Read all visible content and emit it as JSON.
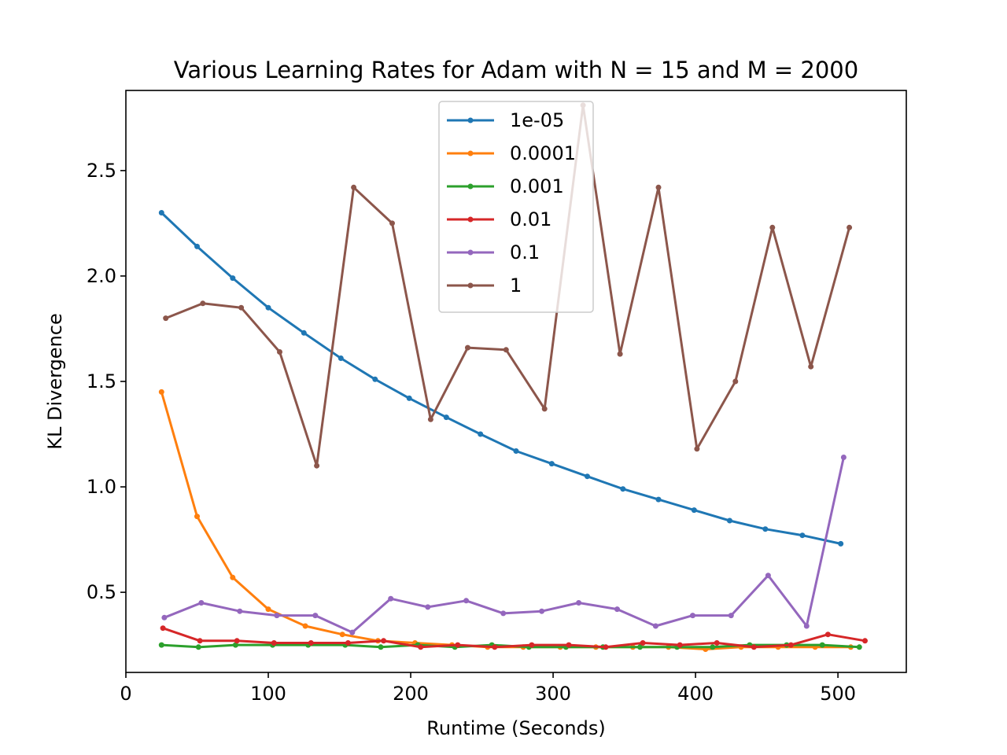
{
  "chart_data": {
    "type": "line",
    "title": "Various Learning Rates for Adam with N = 15 and M = 2000",
    "xlabel": "Runtime (Seconds)",
    "ylabel": "KL Divergence",
    "xlim": [
      0,
      548
    ],
    "ylim": [
      0.12,
      2.88
    ],
    "xticks": [
      0,
      100,
      200,
      300,
      400,
      500
    ],
    "yticks": [
      0.5,
      1.0,
      1.5,
      2.0,
      2.5
    ],
    "xtick_labels": [
      "0",
      "100",
      "200",
      "300",
      "400",
      "500"
    ],
    "ytick_labels": [
      "0.5",
      "1.0",
      "1.5",
      "2.0",
      "2.5"
    ],
    "grid": false,
    "legend_position": "upper center",
    "series": [
      {
        "name": "1e-05",
        "color": "#1f77b4",
        "x": [
          25,
          50,
          75,
          100,
          125,
          151,
          175,
          199,
          225,
          249,
          274,
          299,
          324,
          349,
          374,
          399,
          424,
          449,
          475,
          502
        ],
        "y": [
          2.3,
          2.14,
          1.99,
          1.85,
          1.73,
          1.61,
          1.51,
          1.42,
          1.33,
          1.25,
          1.17,
          1.11,
          1.05,
          0.99,
          0.94,
          0.89,
          0.84,
          0.8,
          0.77,
          0.73
        ]
      },
      {
        "name": "0.0001",
        "color": "#ff7f0e",
        "x": [
          25,
          50,
          75,
          100,
          126,
          152,
          177,
          203,
          229,
          254,
          279,
          305,
          330,
          356,
          381,
          407,
          432,
          458,
          484,
          509
        ],
        "y": [
          1.45,
          0.86,
          0.57,
          0.42,
          0.34,
          0.3,
          0.27,
          0.26,
          0.25,
          0.24,
          0.24,
          0.24,
          0.24,
          0.24,
          0.24,
          0.23,
          0.24,
          0.24,
          0.24,
          0.24
        ]
      },
      {
        "name": "0.001",
        "color": "#2ca02c",
        "x": [
          25,
          51,
          77,
          103,
          128,
          154,
          179,
          205,
          231,
          257,
          283,
          309,
          335,
          361,
          387,
          412,
          438,
          464,
          489,
          515
        ],
        "y": [
          0.25,
          0.24,
          0.25,
          0.25,
          0.25,
          0.25,
          0.24,
          0.25,
          0.24,
          0.25,
          0.24,
          0.24,
          0.24,
          0.24,
          0.24,
          0.24,
          0.25,
          0.25,
          0.25,
          0.24
        ]
      },
      {
        "name": "0.01",
        "color": "#d62728",
        "x": [
          26,
          52,
          78,
          104,
          130,
          156,
          181,
          207,
          233,
          259,
          285,
          311,
          337,
          363,
          389,
          415,
          441,
          467,
          493,
          519
        ],
        "y": [
          0.33,
          0.27,
          0.27,
          0.26,
          0.26,
          0.26,
          0.27,
          0.24,
          0.25,
          0.24,
          0.25,
          0.25,
          0.24,
          0.26,
          0.25,
          0.26,
          0.24,
          0.25,
          0.3,
          0.27
        ]
      },
      {
        "name": "0.1",
        "color": "#9467bd",
        "x": [
          27,
          53,
          80,
          106,
          133,
          159,
          186,
          212,
          239,
          265,
          292,
          318,
          345,
          372,
          398,
          425,
          451,
          478,
          504
        ],
        "y": [
          0.38,
          0.45,
          0.41,
          0.39,
          0.39,
          0.31,
          0.47,
          0.43,
          0.46,
          0.4,
          0.41,
          0.45,
          0.42,
          0.34,
          0.39,
          0.39,
          0.58,
          0.34,
          1.14
        ]
      },
      {
        "name": "1",
        "color": "#8c564b",
        "x": [
          28,
          54,
          81,
          108,
          134,
          160,
          187,
          214,
          240,
          267,
          294,
          321,
          347,
          374,
          401,
          428,
          454,
          481,
          508
        ],
        "y": [
          1.8,
          1.87,
          1.85,
          1.64,
          1.1,
          2.42,
          2.25,
          1.32,
          1.66,
          1.65,
          1.37,
          2.81,
          1.63,
          2.42,
          1.18,
          1.5,
          2.23,
          1.57,
          2.23
        ]
      }
    ]
  }
}
